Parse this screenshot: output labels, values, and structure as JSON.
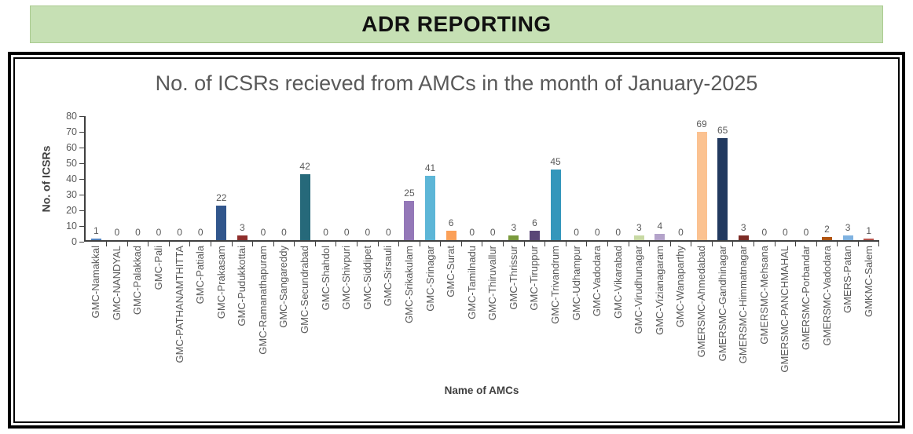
{
  "header": {
    "title": "ADR REPORTING",
    "bg_color": "#C6E0B4",
    "text_color": "#111111"
  },
  "colors": {
    "title_text": "#595959",
    "axis_text": "#595959",
    "axis_line": "#3F3F3F"
  },
  "chart_data": {
    "type": "bar",
    "title": "No. of ICSRs recieved from AMCs in the month of January-2025",
    "xlabel": "Name of AMCs",
    "ylabel": "No. of ICSRs",
    "ylim": [
      0,
      80
    ],
    "yticks": [
      0,
      10,
      20,
      30,
      40,
      50,
      60,
      70,
      80
    ],
    "grid": false,
    "legend": "none",
    "data_labels": true,
    "categories": [
      "GMC-Namakkal",
      "GMC-NANDYAL",
      "GMC-Palakkad",
      "GMC-Pali",
      "GMC-PATHANAMTHITTA",
      "GMC-Patiala",
      "GMC-Prakasam",
      "GMC-Pudukkottai",
      "GMC-Ramanathapuram",
      "GMC-Sangareddy",
      "GMC-Secundrabad",
      "GMC-Shahdol",
      "GMC-Shivpuri",
      "GMC-Siddipet",
      "GMC-Sirsauli",
      "GMC-Srikakulam",
      "GMC-Srinagar",
      "GMC-Surat",
      "GMC-Tamilnadu",
      "GMC-Thiruvallur",
      "GMC-Thrissur",
      "GMC-Tiruppur",
      "GMC-Trivandrum",
      "GMC-Udhampur",
      "GMC-Vadodara",
      "GMC-Vikarabad",
      "GMC-Virudhunagar",
      "GMC-Vizianagaram",
      "GMC-Wanaparthy",
      "GMERSMC-Ahmedabad",
      "GMERSMC-Gandhinagar",
      "GMERSMC-Himmatnagar",
      "GMERSMC-Mehsana",
      "GMERSMC-PANCHMAHAL",
      "GMERSMC-Porbandar",
      "GMERSMC-Vadodara",
      "GMERS-Patan",
      "GMKMC-Salem"
    ],
    "values": [
      1,
      0,
      0,
      0,
      0,
      0,
      22,
      3,
      0,
      0,
      42,
      0,
      0,
      0,
      0,
      25,
      41,
      6,
      0,
      0,
      3,
      6,
      45,
      0,
      0,
      0,
      3,
      4,
      0,
      69,
      65,
      3,
      0,
      0,
      0,
      2,
      3,
      1
    ],
    "bar_colors": [
      "#4F81BD",
      null,
      null,
      null,
      null,
      null,
      "#31568C",
      "#8E2E2C",
      null,
      null,
      "#26697A",
      null,
      null,
      null,
      null,
      "#9478B8",
      "#5DB6D7",
      "#FBA058",
      null,
      null,
      "#7A9A3D",
      "#5A4677",
      "#3496BB",
      null,
      null,
      null,
      "#C8D9A4",
      "#B4A3CA",
      null,
      "#FBC291",
      "#21395F",
      "#7C2B25",
      null,
      null,
      null,
      "#B05410",
      "#7FB2E0",
      "#B3524A"
    ]
  }
}
